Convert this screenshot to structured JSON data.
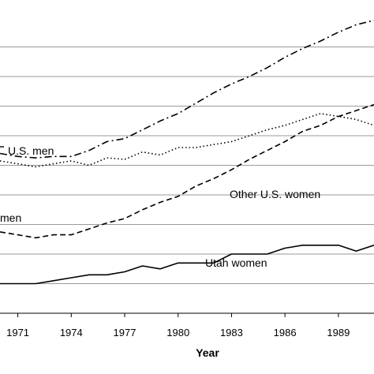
{
  "chart_data": {
    "type": "line",
    "title": "",
    "xlabel": "Year",
    "ylabel": "",
    "xlim": [
      1970,
      1991
    ],
    "ylim": [
      0,
      10
    ],
    "grid": true,
    "xticks": [
      1971,
      1974,
      1977,
      1980,
      1983,
      1986,
      1989
    ],
    "yticks": [
      1,
      2,
      3,
      4,
      5,
      6,
      7,
      8,
      9
    ],
    "series": [
      {
        "key": "other_men",
        "label": "U.S. men",
        "style": "dashdot",
        "x": [
          1970,
          1971,
          1972,
          1973,
          1974,
          1975,
          1976,
          1977,
          1978,
          1979,
          1980,
          1981,
          1982,
          1983,
          1984,
          1985,
          1986,
          1987,
          1988,
          1989,
          1990,
          1991
        ],
        "y": [
          5.4,
          5.3,
          5.25,
          5.3,
          5.3,
          5.5,
          5.8,
          5.9,
          6.2,
          6.5,
          6.75,
          7.1,
          7.45,
          7.75,
          8.0,
          8.3,
          8.65,
          8.95,
          9.2,
          9.5,
          9.75,
          9.9
        ]
      },
      {
        "key": "utah_men",
        "label": "",
        "style": "dotted",
        "x": [
          1970,
          1971,
          1972,
          1973,
          1974,
          1975,
          1976,
          1977,
          1978,
          1979,
          1980,
          1981,
          1982,
          1983,
          1984,
          1985,
          1986,
          1987,
          1988,
          1989,
          1990,
          1991
        ],
        "y": [
          5.15,
          5.05,
          4.95,
          5.05,
          5.15,
          5.0,
          5.25,
          5.2,
          5.45,
          5.35,
          5.6,
          5.6,
          5.7,
          5.8,
          6.0,
          6.2,
          6.35,
          6.55,
          6.75,
          6.65,
          6.55,
          6.35
        ]
      },
      {
        "key": "other_women",
        "label": "Other U.S. women",
        "style": "dashed",
        "x": [
          1970,
          1971,
          1972,
          1973,
          1974,
          1975,
          1976,
          1977,
          1978,
          1979,
          1980,
          1981,
          1982,
          1983,
          1984,
          1985,
          1986,
          1987,
          1988,
          1989,
          1990,
          1991
        ],
        "y": [
          2.75,
          2.65,
          2.55,
          2.65,
          2.65,
          2.85,
          3.05,
          3.2,
          3.5,
          3.75,
          3.95,
          4.3,
          4.55,
          4.85,
          5.2,
          5.5,
          5.8,
          6.15,
          6.35,
          6.65,
          6.85,
          7.05
        ]
      },
      {
        "key": "utah_women",
        "label": "Utah women",
        "style": "solid",
        "x": [
          1970,
          1971,
          1972,
          1973,
          1974,
          1975,
          1976,
          1977,
          1978,
          1979,
          1980,
          1981,
          1982,
          1983,
          1984,
          1985,
          1986,
          1987,
          1988,
          1989,
          1990,
          1991
        ],
        "y": [
          1.0,
          1.0,
          1.0,
          1.1,
          1.2,
          1.3,
          1.3,
          1.4,
          1.6,
          1.5,
          1.7,
          1.7,
          1.7,
          2.0,
          2.0,
          2.0,
          2.2,
          2.3,
          2.3,
          2.3,
          2.1,
          2.3
        ]
      }
    ],
    "annotations": [
      {
        "text": "U.S. men",
        "series": "other_men"
      },
      {
        "text": "men",
        "series": "utah_men"
      },
      {
        "text": "Other U.S. women",
        "series": "other_women"
      },
      {
        "text": "Utah women",
        "series": "utah_women"
      }
    ]
  }
}
